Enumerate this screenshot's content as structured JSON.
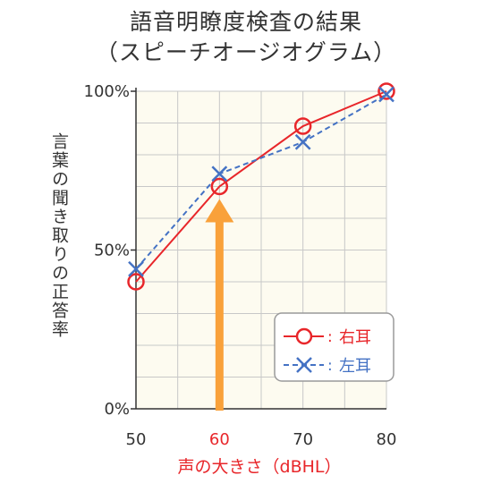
{
  "title": [
    "語音明瞭度検査の結果",
    "（スピーチオージオグラム）"
  ],
  "chart_data": {
    "type": "line",
    "title": "語音明瞭度検査の結果（スピーチオージオグラム）",
    "xlabel": "声の大きさ（dBHL）",
    "ylabel": "言葉の聞き取りの正答率",
    "x": [
      50,
      60,
      70,
      80
    ],
    "x_tick_labels": [
      "50",
      "60",
      "70",
      "80"
    ],
    "y_tick_labels": [
      "100%",
      "50%",
      "0%"
    ],
    "xlim": [
      50,
      80
    ],
    "ylim": [
      0,
      100
    ],
    "grid": true,
    "legend_position": "bottom-right",
    "series": [
      {
        "name": "右耳",
        "marker": "o",
        "line_style": "solid",
        "color": "#e8262a",
        "values": [
          40,
          70,
          89,
          100
        ]
      },
      {
        "name": "左耳",
        "marker": "x",
        "line_style": "dashed",
        "color": "#4472c4",
        "values": [
          44,
          74,
          84,
          99
        ]
      }
    ],
    "annotation": {
      "type": "arrow",
      "color": "#f9a13a",
      "x": 60,
      "highlight_color": "#e8262a"
    }
  },
  "colors": {
    "plot_background": "#fdfbf0",
    "grid": "#c8c8c8",
    "axis": "#333333",
    "accent_red": "#e8262a",
    "accent_blue": "#4472c4",
    "arrow": "#f9a13a"
  },
  "legend": {
    "right_label": "右耳",
    "left_label": "左耳",
    "separator": ":"
  }
}
